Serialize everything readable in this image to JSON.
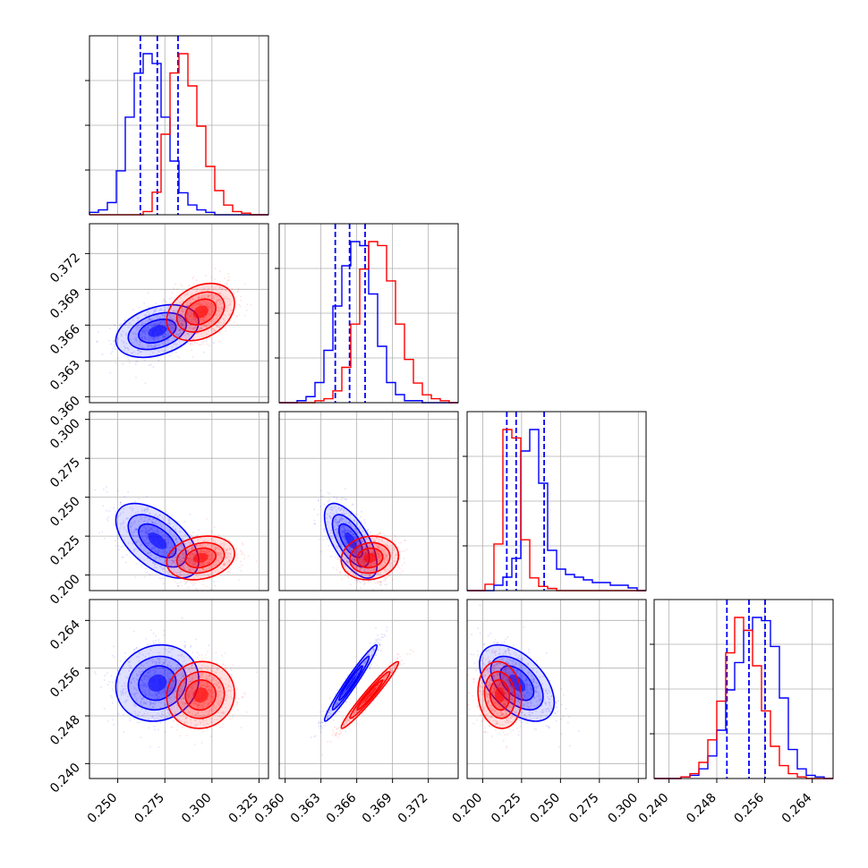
{
  "chart_data": {
    "type": "corner",
    "grid": true,
    "colors": {
      "blue": "#0000ff",
      "red": "#ff0000"
    },
    "parameters": [
      {
        "range": [
          0.235,
          0.33
        ],
        "ticks": [
          "0.250",
          "0.275",
          "0.300",
          "0.325"
        ],
        "tick_values": [
          0.25,
          0.275,
          0.3,
          0.325
        ]
      },
      {
        "range": [
          0.3595,
          0.3745
        ],
        "ticks": [
          "0.360",
          "0.363",
          "0.366",
          "0.369",
          "0.372"
        ],
        "tick_values": [
          0.36,
          0.363,
          0.366,
          0.369,
          0.372
        ]
      },
      {
        "range": [
          0.19,
          0.305
        ],
        "ticks": [
          "0.200",
          "0.225",
          "0.250",
          "0.275",
          "0.300"
        ],
        "tick_values": [
          0.2,
          0.225,
          0.25,
          0.275,
          0.3
        ]
      },
      {
        "range": [
          0.2375,
          0.2675
        ],
        "ticks": [
          "0.240",
          "0.248",
          "0.256",
          "0.264"
        ],
        "tick_values": [
          0.24,
          0.248,
          0.256,
          0.264
        ]
      }
    ],
    "series": [
      {
        "color": "#0000ff",
        "means": [
          0.271,
          0.3655,
          0.222,
          0.2535
        ],
        "sds": [
          0.011,
          0.0011,
          0.012,
          0.0032
        ],
        "quantiles": [
          [
            0.262,
            0.271,
            0.282
          ],
          [
            0.3642,
            0.3654,
            0.3667
          ],
          [
            0.2155,
            0.2215,
            0.2395
          ],
          [
            0.2497,
            0.2534,
            0.2561
          ]
        ],
        "histograms": [
          [
            1,
            2,
            5,
            18,
            40,
            58,
            66,
            62,
            40,
            22,
            9,
            4,
            2,
            1,
            0,
            0,
            0,
            0,
            0,
            0
          ],
          [
            0,
            0,
            1,
            3,
            10,
            26,
            48,
            68,
            80,
            78,
            54,
            28,
            10,
            4,
            1,
            1,
            0,
            0,
            0,
            0
          ],
          [
            0,
            0,
            0,
            2,
            5,
            12,
            52,
            60,
            40,
            15,
            8,
            6,
            5,
            4,
            3,
            3,
            2,
            2,
            1,
            0
          ],
          [
            0,
            0,
            0,
            1,
            2,
            6,
            14,
            30,
            55,
            72,
            92,
            100,
            98,
            82,
            50,
            18,
            6,
            2,
            1,
            0
          ]
        ]
      },
      {
        "color": "#ff0000",
        "means": [
          0.294,
          0.3671,
          0.211,
          0.2515
        ],
        "sds": [
          0.009,
          0.0012,
          0.007,
          0.0028
        ],
        "quantiles": [],
        "histograms": [
          [
            0,
            0,
            0,
            0,
            0,
            0,
            2,
            14,
            50,
            88,
            100,
            80,
            55,
            30,
            15,
            6,
            2,
            1,
            0,
            0
          ],
          [
            0,
            0,
            0,
            0,
            1,
            2,
            6,
            18,
            40,
            68,
            82,
            80,
            62,
            40,
            22,
            10,
            4,
            2,
            1,
            0
          ],
          [
            0,
            0,
            3,
            22,
            76,
            72,
            24,
            6,
            2,
            1,
            0,
            0,
            0,
            0,
            0,
            0,
            0,
            0,
            0,
            0
          ],
          [
            0,
            0,
            0,
            1,
            3,
            10,
            24,
            48,
            78,
            100,
            92,
            70,
            42,
            20,
            8,
            3,
            1,
            0,
            0,
            0
          ]
        ]
      }
    ],
    "correlations": {
      "blue": {
        "1-0": 0.35,
        "2-0": -0.55,
        "2-1": -0.65,
        "3-0": 0.1,
        "3-1": 0.97,
        "3-2": -0.5
      },
      "red": {
        "1-0": 0.3,
        "2-0": 0.2,
        "2-1": 0.1,
        "3-0": 0.05,
        "3-1": 0.97,
        "3-2": -0.1
      }
    }
  }
}
